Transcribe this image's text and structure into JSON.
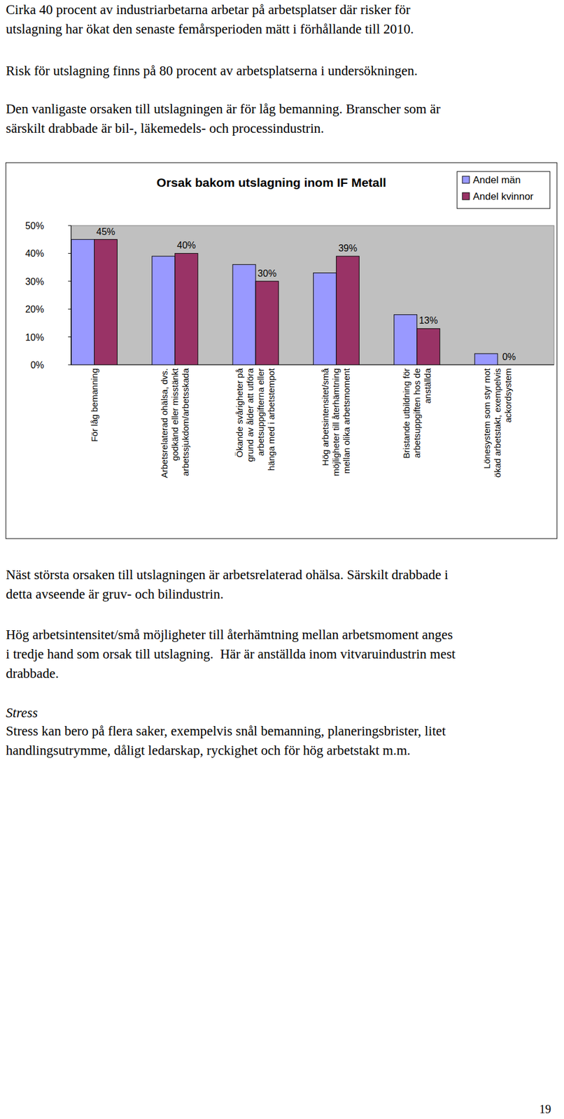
{
  "document": {
    "blocks_top": [
      {
        "kind": "paragraph",
        "lines": [
          "Cirka 40 procent av industriarbetarna arbetar på arbetsplatser där risker för",
          "utslagning har ökat den senaste femårsperioden mätt i förhållande till 2010."
        ]
      },
      {
        "kind": "paragraph",
        "lines": [
          "Risk för utslagning finns på 80 procent av arbetsplatserna i undersökningen."
        ]
      },
      {
        "kind": "paragraph",
        "lines": [
          "Den vanligaste orsaken till utslagningen är för låg bemanning. Branscher som är",
          "särskilt drabbade är bil-, läkemedels- och processindustrin."
        ]
      }
    ],
    "blocks_bottom": [
      {
        "kind": "paragraph",
        "lines": [
          "Näst största orsaken till utslagningen är arbetsrelaterad ohälsa. Särskilt drabbade i",
          "detta avseende är gruv- och bilindustrin."
        ]
      },
      {
        "kind": "paragraph",
        "lines": [
          "Hög arbetsintensitet/små möjligheter till återhämtning mellan arbetsmoment anges",
          "i tredje hand som orsak till utslagning.  Här är anställda inom vitvaruindustrin mest",
          "drabbade."
        ]
      },
      {
        "kind": "heading",
        "lines": [
          "Stress"
        ]
      },
      {
        "kind": "paragraph",
        "lines": [
          "Stress kan bero på flera saker, exempelvis snål bemanning, planeringsbrister, litet",
          "handlingsutrymme, dåligt ledarskap, ryckighet och för hög arbetstakt m.m."
        ]
      }
    ],
    "page_number": "19"
  },
  "chart_data": {
    "type": "bar",
    "title": "Orsak bakom utslagning inom IF Metall",
    "categories": [
      "För låg bemanning",
      "Arbetsrelaterad ohälsa, dvs.\ngodkänd eller misstänkt\narbetssjukdom/arbetsskada",
      "Ökande svårigheter på\ngrund av ålder att utföra\narbetsuppgifterna eller\nhänga med i arbetstempot",
      "Hög arbetsintensitet/små\nmöjligheter till återhämtning\nmellan olika arbetsmoment",
      "Bristande utbildning för\narbetsuppgiften hos de\nanställda",
      "Lönesystem som styr mot\nökad arbetstakt, exempelvis\nackordsystem"
    ],
    "series": [
      {
        "name": "Andel män",
        "color": "#9999ff",
        "values": [
          45,
          39,
          36,
          33,
          18,
          4
        ]
      },
      {
        "name": "Andel kvinnor",
        "color": "#993366",
        "values": [
          45,
          40,
          30,
          39,
          13,
          0
        ],
        "value_labels": [
          "45%",
          "40%",
          "30%",
          "39%",
          "13%",
          "0%"
        ]
      }
    ],
    "ylim": [
      0,
      50
    ],
    "yticks": [
      {
        "value": 0,
        "label": "0%"
      },
      {
        "value": 10,
        "label": "10%"
      },
      {
        "value": 20,
        "label": "20%"
      },
      {
        "value": 30,
        "label": "30%"
      },
      {
        "value": 40,
        "label": "40%"
      },
      {
        "value": 50,
        "label": "50%"
      }
    ],
    "grid": false,
    "legend": "top-right",
    "data_labels": true
  }
}
